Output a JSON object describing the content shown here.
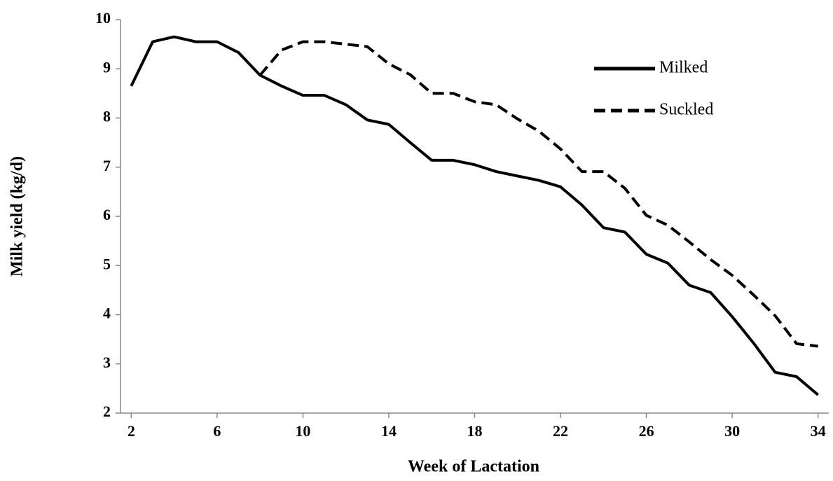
{
  "chart_data": {
    "type": "line",
    "x_label": "Week of Lactation",
    "y_label": "Milk yield (kg/d)",
    "x": [
      2,
      3,
      4,
      5,
      6,
      7,
      8,
      9,
      10,
      11,
      12,
      13,
      14,
      15,
      16,
      17,
      18,
      19,
      20,
      21,
      22,
      23,
      24,
      25,
      26,
      27,
      28,
      29,
      30,
      31,
      32,
      33,
      34
    ],
    "series": [
      {
        "name": "Milked",
        "color": "#000000",
        "dash": "solid",
        "values": [
          8.65,
          9.55,
          9.65,
          9.55,
          9.55,
          9.33,
          8.87,
          8.65,
          8.46,
          8.46,
          8.27,
          7.96,
          7.87,
          7.5,
          7.14,
          7.14,
          7.05,
          6.91,
          6.82,
          6.73,
          6.6,
          6.23,
          5.77,
          5.68,
          5.23,
          5.05,
          4.6,
          4.45,
          3.96,
          3.42,
          2.83,
          2.74,
          2.37
        ]
      },
      {
        "name": "Suckled",
        "color": "#000000",
        "dash": "dashed",
        "values": [
          null,
          null,
          null,
          null,
          null,
          null,
          8.87,
          9.38,
          9.55,
          9.55,
          9.5,
          9.45,
          9.1,
          8.88,
          8.5,
          8.5,
          8.33,
          8.27,
          7.98,
          7.73,
          7.37,
          6.91,
          6.91,
          6.57,
          6.02,
          5.82,
          5.48,
          5.12,
          4.8,
          4.4,
          3.98,
          3.41,
          3.36
        ]
      }
    ],
    "xlim": [
      1.5,
      34.5
    ],
    "xticks": [
      2,
      6,
      10,
      14,
      18,
      22,
      26,
      30,
      34
    ],
    "ylim": [
      2,
      10
    ],
    "yticks": [
      2,
      3,
      4,
      5,
      6,
      7,
      8,
      9,
      10
    ],
    "grid": false,
    "legend": "upper right"
  }
}
